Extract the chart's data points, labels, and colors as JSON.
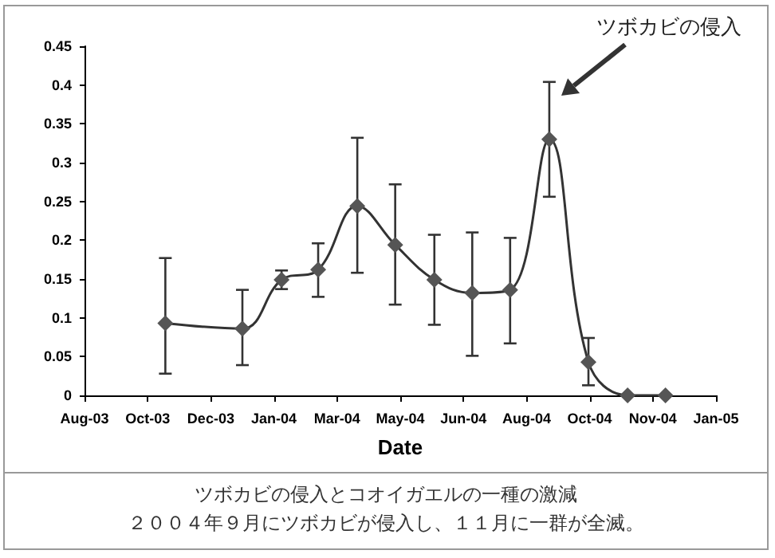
{
  "chart_data": {
    "type": "line",
    "xlabel": "Date",
    "x": [
      "2003-11-01",
      "2004-01-01",
      "2004-02-01",
      "2004-03-01",
      "2004-04-01",
      "2004-05-01",
      "2004-06-01",
      "2004-07-01",
      "2004-07-31",
      "2004-08-31",
      "2004-10-01",
      "2004-11-01",
      "2004-12-01"
    ],
    "series": [
      {
        "color": "#555555",
        "values": [
          0.093,
          0.086,
          0.149,
          0.162,
          0.244,
          0.194,
          0.149,
          0.132,
          0.136,
          0.33,
          0.043,
          0,
          0
        ],
        "errors": [
          [
            0.028,
            0.177
          ],
          [
            0.039,
            0.136
          ],
          [
            0.137,
            0.161
          ],
          [
            0.127,
            0.196
          ],
          [
            0.158,
            0.332
          ],
          [
            0.117,
            0.272
          ],
          [
            0.091,
            0.207
          ],
          [
            0.051,
            0.21
          ],
          [
            0.067,
            0.203
          ],
          [
            0.256,
            0.404
          ],
          [
            0.013,
            0.074
          ],
          null,
          null
        ]
      }
    ],
    "xlim": [
      "2003-08-29",
      "2005-01-10"
    ],
    "xticks": [
      {
        "value": "2003-08-29",
        "label": "Aug-03"
      },
      {
        "value": "2003-10-18",
        "label": "Oct-03"
      },
      {
        "value": "2003-12-07",
        "label": "Dec-03"
      },
      {
        "value": "2004-01-26",
        "label": "Jan-04"
      },
      {
        "value": "2004-03-16",
        "label": "Mar-04"
      },
      {
        "value": "2004-05-05",
        "label": "May-04"
      },
      {
        "value": "2004-06-24",
        "label": "Jun-04"
      },
      {
        "value": "2004-08-13",
        "label": "Aug-04"
      },
      {
        "value": "2004-10-02",
        "label": "Oct-04"
      },
      {
        "value": "2004-11-21",
        "label": "Nov-04"
      },
      {
        "value": "2005-01-10",
        "label": "Jan-05"
      }
    ],
    "ylim": [
      0,
      0.45
    ],
    "yticks": [
      0,
      0.05,
      0.1,
      0.15,
      0.2,
      0.25,
      0.3,
      0.35,
      0.4,
      0.45
    ],
    "grid": false,
    "marker": "diamond",
    "line_style": "solid",
    "annotations": [
      "ツボカビの侵入",
      "ツボカビの侵入とコオイガエルの一種の激減",
      "２００４年９月にツボカビが侵入し、１１月に一群が全滅。"
    ]
  }
}
